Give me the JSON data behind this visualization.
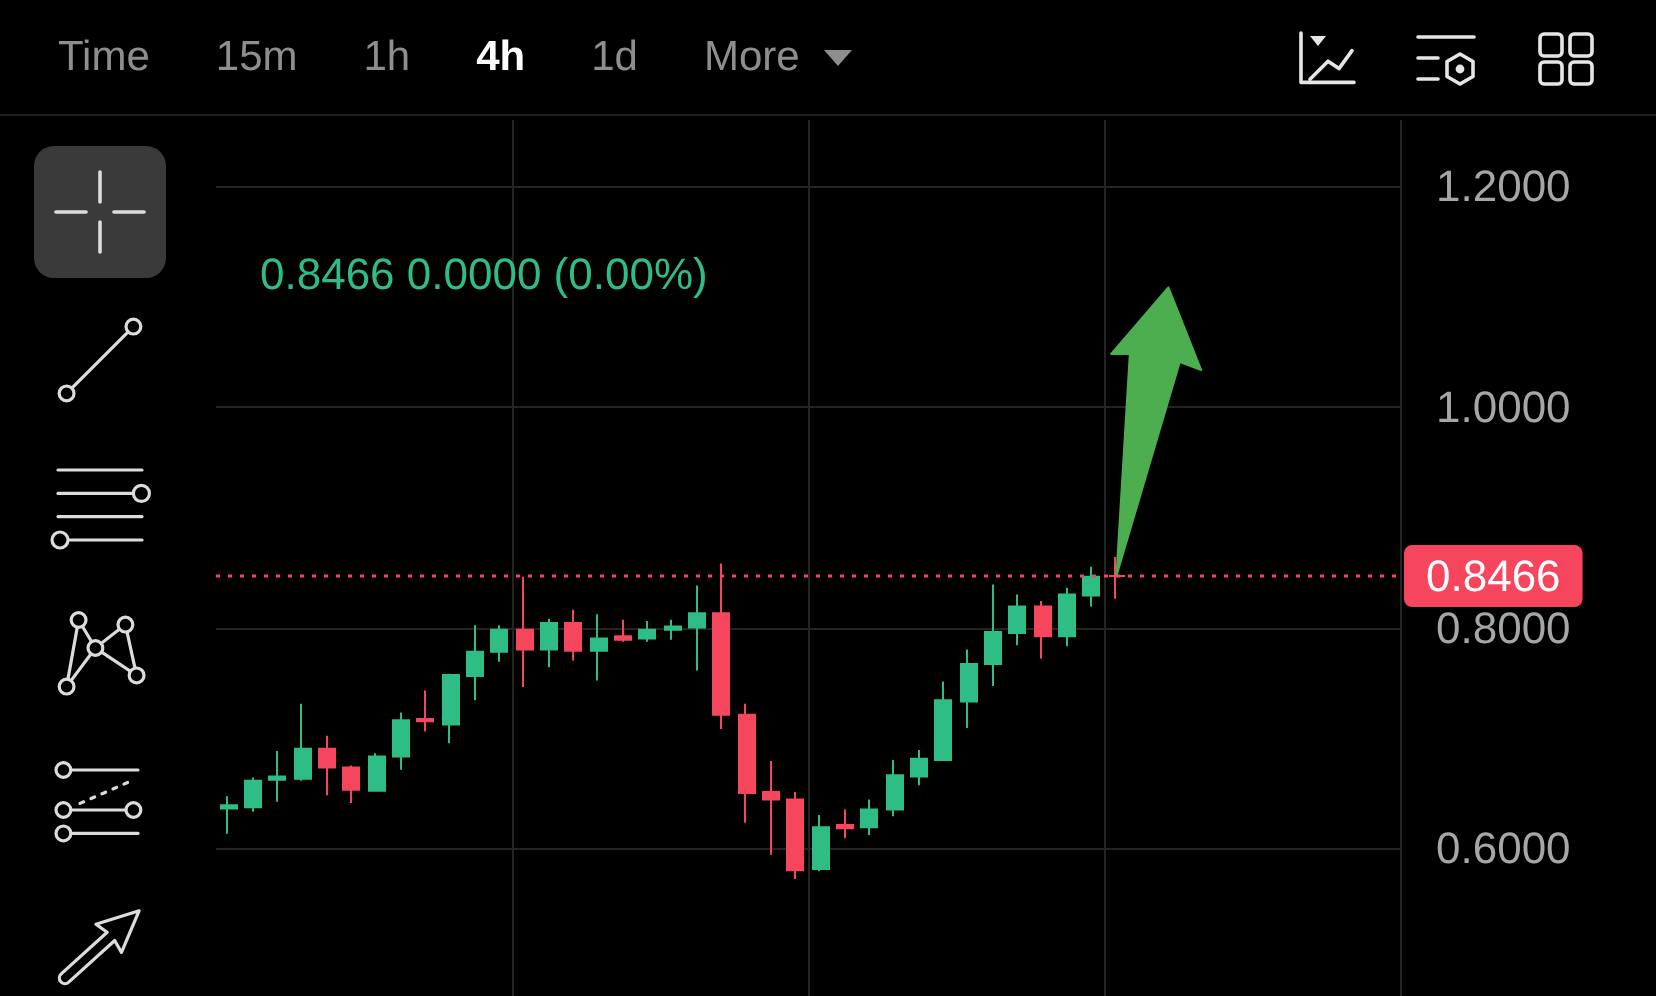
{
  "chart_data": {
    "type": "candlestick",
    "subtitle": "0.8466 0.0000 (0.00%)",
    "annotations": [
      "Time",
      "15m",
      "1h",
      "4h",
      "1d",
      "More"
    ],
    "categories": [
      null,
      null,
      null,
      null,
      null,
      null,
      null,
      null,
      null,
      null,
      null,
      null,
      null,
      null,
      null,
      null,
      null,
      null,
      null,
      null,
      null,
      null,
      null,
      null,
      null,
      null,
      null,
      null,
      null,
      null,
      null,
      null,
      null,
      null,
      null,
      null,
      null,
      null,
      null,
      null,
      null,
      null,
      null,
      null,
      null,
      null,
      null,
      null
    ],
    "ohlc": [
      [
        0.636,
        0.647,
        0.613,
        0.639
      ],
      [
        0.637,
        0.664,
        0.633,
        0.661
      ],
      [
        0.662,
        0.688,
        0.642,
        0.665
      ],
      [
        0.663,
        0.731,
        0.661,
        0.69
      ],
      [
        0.69,
        0.702,
        0.648,
        0.673
      ],
      [
        0.673,
        0.675,
        0.641,
        0.653
      ],
      [
        0.652,
        0.686,
        0.652,
        0.683
      ],
      [
        0.683,
        0.723,
        0.671,
        0.716
      ],
      [
        0.717,
        0.743,
        0.706,
        0.715
      ],
      [
        0.712,
        0.758,
        0.695,
        0.757
      ],
      [
        0.756,
        0.802,
        0.734,
        0.778
      ],
      [
        0.778,
        0.802,
        0.769,
        0.798
      ],
      [
        0.798,
        0.846,
        0.746,
        0.78
      ],
      [
        0.78,
        0.808,
        0.764,
        0.804
      ],
      [
        0.804,
        0.816,
        0.77,
        0.779
      ],
      [
        0.779,
        0.812,
        0.752,
        0.79
      ],
      [
        0.792,
        0.807,
        0.787,
        0.789
      ],
      [
        0.79,
        0.806,
        0.787,
        0.798
      ],
      [
        0.798,
        0.807,
        0.789,
        0.801
      ],
      [
        0.8,
        0.838,
        0.761,
        0.813
      ],
      [
        0.813,
        0.858,
        0.708,
        0.721
      ],
      [
        0.721,
        0.731,
        0.623,
        0.65
      ],
      [
        0.651,
        0.679,
        0.594,
        0.644
      ],
      [
        0.644,
        0.651,
        0.572,
        0.58
      ],
      [
        0.581,
        0.63,
        0.579,
        0.619
      ],
      [
        0.621,
        0.635,
        0.609,
        0.618
      ],
      [
        0.619,
        0.644,
        0.612,
        0.635
      ],
      [
        0.635,
        0.68,
        0.629,
        0.666
      ],
      [
        0.665,
        0.689,
        0.657,
        0.681
      ],
      [
        0.68,
        0.751,
        0.68,
        0.734
      ],
      [
        0.733,
        0.78,
        0.709,
        0.767
      ],
      [
        0.767,
        0.839,
        0.747,
        0.796
      ],
      [
        0.795,
        0.83,
        0.784,
        0.819
      ],
      [
        0.819,
        0.824,
        0.772,
        0.792
      ],
      [
        0.792,
        0.836,
        0.783,
        0.83
      ],
      [
        0.829,
        0.855,
        0.819,
        0.846
      ],
      [
        0.8466,
        0.864,
        0.826,
        0.8466
      ],
      null,
      null,
      null,
      null,
      null,
      null,
      null,
      null,
      null,
      null,
      null
    ],
    "colors": [
      "#2ebd85",
      "#2ebd85",
      "#2ebd85",
      "#2ebd85",
      "#f6465d",
      "#f6465d",
      "#2ebd85",
      "#2ebd85",
      "#f6465d",
      "#2ebd85",
      "#2ebd85",
      "#2ebd85",
      "#f6465d",
      "#2ebd85",
      "#f6465d",
      "#2ebd85",
      "#f6465d",
      "#2ebd85",
      "#2ebd85",
      "#2ebd85",
      "#f6465d",
      "#f6465d",
      "#f6465d",
      "#f6465d",
      "#2ebd85",
      "#f6465d",
      "#2ebd85",
      "#2ebd85",
      "#2ebd85",
      "#2ebd85",
      "#2ebd85",
      "#2ebd85",
      "#2ebd85",
      "#f6465d",
      "#2ebd85",
      "#2ebd85",
      "#f6465d",
      null,
      null,
      null,
      null,
      null,
      null,
      null,
      null,
      null,
      null,
      null
    ],
    "ylim": [
      0.466,
      1.26
    ],
    "yticks": [
      {
        "value": 0.6,
        "label": "0.6000"
      },
      {
        "value": 0.8,
        "label": "0.8000"
      },
      {
        "value": 1.0,
        "label": "1.0000"
      },
      {
        "value": 1.2,
        "label": "1.2000"
      }
    ],
    "grid": true,
    "tick_labels": "y",
    "ref_lines": [
      {
        "axis": "y",
        "value": 0.8466,
        "label": "0.8466",
        "color": "#f6465d",
        "line_style": "dotted"
      }
    ]
  }
}
